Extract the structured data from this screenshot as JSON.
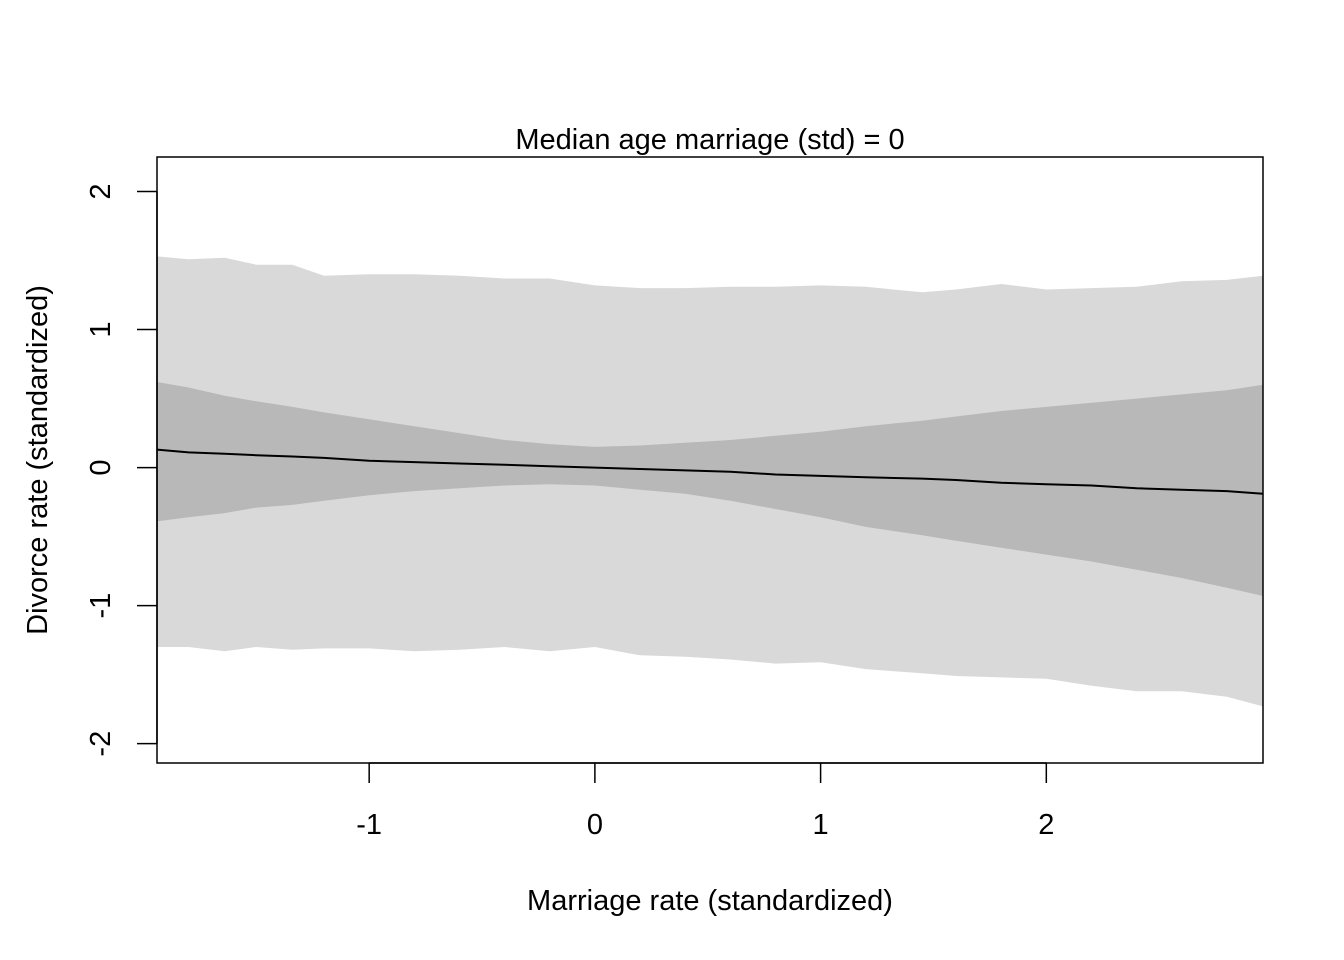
{
  "chart_data": {
    "type": "area",
    "title": "Median age marriage (std) = 0",
    "xlabel": "Marriage rate (standardized)",
    "ylabel": "Divorce rate (standardized)",
    "xlim": [
      -1.94,
      2.96
    ],
    "ylim": [
      -2.14,
      2.25
    ],
    "xticks": [
      -1,
      0,
      1,
      2
    ],
    "yticks": [
      -2,
      -1,
      0,
      1,
      2
    ],
    "grid": false,
    "legend": "none",
    "colors": {
      "prediction_band": "#d9d9d9",
      "mean_band": "#b8b8b8",
      "mean_line": "#000000"
    },
    "x": [
      -1.94,
      -1.8,
      -1.64,
      -1.5,
      -1.34,
      -1.2,
      -1.0,
      -0.8,
      -0.6,
      -0.4,
      -0.2,
      0.0,
      0.2,
      0.4,
      0.6,
      0.8,
      1.0,
      1.2,
      1.45,
      1.6,
      1.8,
      2.0,
      2.2,
      2.4,
      2.6,
      2.8,
      2.96
    ],
    "series": [
      {
        "values": [
          0.13,
          0.11,
          0.1,
          0.09,
          0.08,
          0.07,
          0.05,
          0.04,
          0.03,
          0.02,
          0.01,
          0.0,
          -0.01,
          -0.02,
          -0.03,
          -0.05,
          -0.06,
          -0.07,
          -0.08,
          -0.09,
          -0.11,
          -0.12,
          -0.13,
          -0.15,
          -0.16,
          -0.17,
          -0.19
        ]
      }
    ],
    "mean_interval": {
      "upper": [
        0.62,
        0.58,
        0.52,
        0.48,
        0.44,
        0.4,
        0.35,
        0.3,
        0.25,
        0.2,
        0.17,
        0.15,
        0.16,
        0.18,
        0.2,
        0.23,
        0.26,
        0.3,
        0.34,
        0.37,
        0.41,
        0.44,
        0.47,
        0.5,
        0.53,
        0.56,
        0.6
      ],
      "lower": [
        -0.39,
        -0.36,
        -0.33,
        -0.29,
        -0.27,
        -0.24,
        -0.2,
        -0.17,
        -0.15,
        -0.13,
        -0.12,
        -0.13,
        -0.16,
        -0.19,
        -0.24,
        -0.3,
        -0.36,
        -0.43,
        -0.49,
        -0.53,
        -0.58,
        -0.63,
        -0.68,
        -0.74,
        -0.8,
        -0.87,
        -0.93
      ]
    },
    "prediction_interval": {
      "upper": [
        1.53,
        1.51,
        1.52,
        1.47,
        1.47,
        1.39,
        1.4,
        1.4,
        1.39,
        1.37,
        1.37,
        1.32,
        1.3,
        1.3,
        1.31,
        1.31,
        1.32,
        1.31,
        1.27,
        1.29,
        1.33,
        1.29,
        1.3,
        1.31,
        1.35,
        1.36,
        1.39
      ],
      "lower": [
        -1.3,
        -1.3,
        -1.33,
        -1.3,
        -1.32,
        -1.31,
        -1.31,
        -1.33,
        -1.32,
        -1.3,
        -1.33,
        -1.3,
        -1.36,
        -1.37,
        -1.39,
        -1.42,
        -1.41,
        -1.46,
        -1.49,
        -1.51,
        -1.52,
        -1.53,
        -1.58,
        -1.62,
        -1.62,
        -1.66,
        -1.73
      ]
    }
  }
}
